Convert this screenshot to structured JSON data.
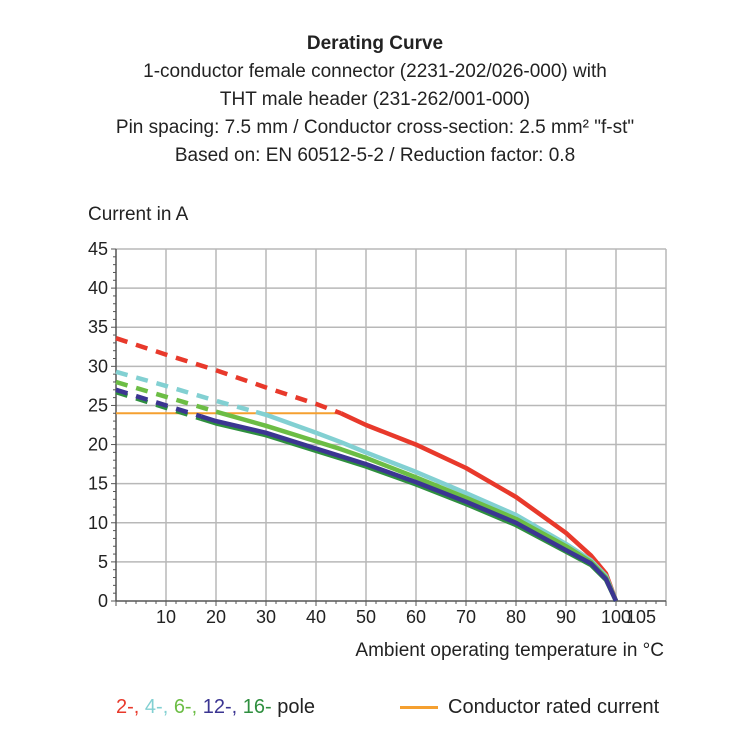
{
  "chart_data": {
    "type": "line",
    "title": "Derating Curve",
    "subtitle": [
      "1-conductor female connector (2231-202/026-000) with",
      "THT male header (231-262/001-000)",
      "Pin spacing: 7.5 mm / Conductor cross-section: 2.5 mm² \"f-st\"",
      "Based on: EN 60512-5-2 / Reduction factor: 0.8"
    ],
    "xlabel": "Ambient operating temperature in °C",
    "ylabel": "Current in A",
    "xlim": [
      0,
      110
    ],
    "ylim": [
      0,
      45
    ],
    "xticks": [
      10,
      20,
      30,
      40,
      50,
      60,
      70,
      80,
      90,
      100,
      105
    ],
    "yticks": [
      0,
      5,
      10,
      15,
      20,
      25,
      30,
      35,
      40,
      45
    ],
    "grid": true,
    "x": [
      0,
      10,
      20,
      30,
      40,
      45,
      50,
      60,
      70,
      80,
      90,
      95,
      98,
      100
    ],
    "series": [
      {
        "name": "2-",
        "color": "#e8392b",
        "dashed_until": 45,
        "values": [
          33.6,
          31.5,
          29.5,
          27.3,
          25.2,
          24.0,
          22.5,
          20.0,
          17.0,
          13.3,
          8.7,
          5.8,
          3.5,
          0
        ]
      },
      {
        "name": "4-",
        "color": "#82d0d2",
        "dashed_until": 28,
        "values": [
          29.3,
          27.5,
          25.6,
          23.8,
          21.5,
          20.3,
          19.0,
          16.5,
          13.8,
          11.0,
          7.3,
          5.2,
          3.2,
          0
        ]
      },
      {
        "name": "6-",
        "color": "#6cbd45",
        "dashed_until": 20,
        "values": [
          28.0,
          26.1,
          24.2,
          22.4,
          20.4,
          19.4,
          18.3,
          15.8,
          13.2,
          10.5,
          7.0,
          5.0,
          3.0,
          0
        ]
      },
      {
        "name": "16-",
        "color": "#2f8f3f",
        "dashed_until": 17,
        "values": [
          26.7,
          24.7,
          22.7,
          21.2,
          19.2,
          18.2,
          17.2,
          14.9,
          12.4,
          9.7,
          6.3,
          4.6,
          2.7,
          0
        ]
      },
      {
        "name": "12-",
        "color": "#3b3592",
        "dashed_until": 17,
        "values": [
          27.0,
          25.0,
          23.0,
          21.5,
          19.5,
          18.5,
          17.5,
          15.2,
          12.7,
          10.0,
          6.5,
          4.8,
          2.8,
          0
        ]
      }
    ],
    "rated_current": {
      "name": "Conductor rated current",
      "color": "#f5a030",
      "value": 24,
      "x_range": [
        0,
        45
      ]
    },
    "legend": {
      "placement": "bottom",
      "poles": [
        {
          "label": "2-,",
          "color": "#e8392b"
        },
        {
          "label": "4-,",
          "color": "#82d0d2"
        },
        {
          "label": "6-,",
          "color": "#6cbd45"
        },
        {
          "label": "12-,",
          "color": "#3b3592"
        },
        {
          "label": "16-",
          "color": "#2f8f3f"
        }
      ],
      "pole_suffix": "pole",
      "rated_label": "Conductor rated current"
    }
  }
}
